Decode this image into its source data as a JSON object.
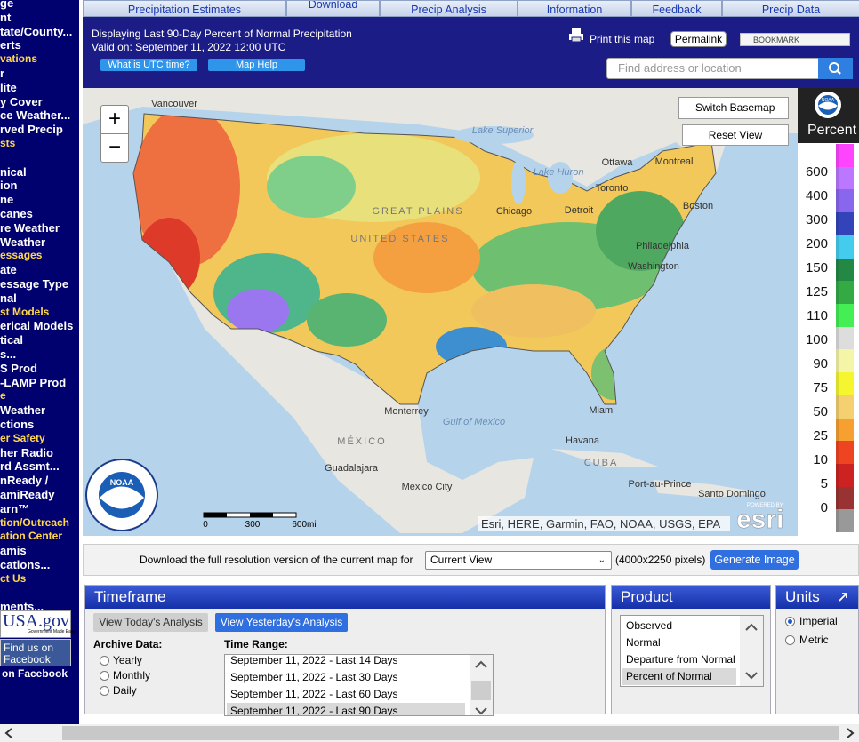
{
  "sidebar": {
    "items": [
      {
        "text": "ge"
      },
      {
        "text": "nt"
      },
      {
        "text": "tate/County..."
      },
      {
        "text": "erts"
      },
      {
        "text": "vations",
        "accent": true
      },
      {
        "text": "r"
      },
      {
        "text": "lite"
      },
      {
        "text": "y Cover"
      },
      {
        "text": "ce Weather..."
      },
      {
        "text": "rved Precip"
      },
      {
        "text": "sts",
        "accent": true
      },
      {
        "text": "nical"
      },
      {
        "text": "ion"
      },
      {
        "text": "ne"
      },
      {
        "text": "canes"
      },
      {
        "text": "re Weather"
      },
      {
        "text": "Weather"
      },
      {
        "text": "essages",
        "accent": true
      },
      {
        "text": "ate"
      },
      {
        "text": "essage Type"
      },
      {
        "text": "nal"
      },
      {
        "text": "st Models",
        "accent": true
      },
      {
        "text": "erical Models"
      },
      {
        "text": "tical"
      },
      {
        "text": "s..."
      },
      {
        "text": "S Prod"
      },
      {
        "text": "-LAMP Prod"
      },
      {
        "text": "e",
        "accent": true
      },
      {
        "text": "Weather"
      },
      {
        "text": "ctions"
      },
      {
        "text": "er Safety",
        "accent": true
      },
      {
        "text": "her Radio"
      },
      {
        "text": "rd Assmt..."
      },
      {
        "text": "nReady /"
      },
      {
        "text": "amiReady"
      },
      {
        "text": "arn™"
      },
      {
        "text": "tion/Outreach",
        "accent": true
      },
      {
        "text": "ation Center",
        "accent": true
      },
      {
        "text": "amis"
      },
      {
        "text": "cations..."
      },
      {
        "text": "ct Us",
        "accent": true
      },
      {
        "text": "ments..."
      }
    ],
    "usa_gov": "USA.gov",
    "usa_gov_tagline": "Government Made Easy",
    "facebook_badge": "Find us on Facebook",
    "facebook_link": "on Facebook"
  },
  "tabs": [
    "Precipitation Estimates",
    "Download",
    "Precip Analysis",
    "Information",
    "Feedback",
    "Precip Data"
  ],
  "header": {
    "line1": "Displaying Last 90-Day Percent of Normal Precipitation",
    "line2": "Valid on: September 11, 2022 12:00 UTC",
    "buttons": [
      "What is UTC time?",
      "Map Help"
    ],
    "print": "Print this map",
    "permalink": "Permalink",
    "bookmark": "BOOKMARK",
    "search_placeholder": "Find address or location"
  },
  "map": {
    "zoom_in": "+",
    "zoom_out": "−",
    "switch_basemap": "Switch Basemap",
    "reset_view": "Reset View",
    "labels": [
      "Vancouver",
      "Lake Superior",
      "Lake Huron",
      "Ottawa",
      "Montreal",
      "Toronto",
      "Detroit",
      "Chicago",
      "Boston",
      "Philadelphia",
      "Washington",
      "GREAT PLAINS",
      "UNITED STATES",
      "Monterrey",
      "Gulf of Mexico",
      "Miami",
      "Havana",
      "CUBA",
      "MÉXICO",
      "Guadalajara",
      "Mexico City",
      "Port-au-Prince",
      "Santo Domingo"
    ],
    "scale": [
      "0",
      "300",
      "600mi"
    ],
    "attribution": "Esri, HERE, Garmin, FAO, NOAA, USGS, EPA",
    "powered_by": "POWERED BY",
    "esri": "esri",
    "noaa": "NOAA",
    "help": "?"
  },
  "legend": {
    "noaa": "NOAA",
    "title": "Percent",
    "values": [
      600,
      400,
      300,
      200,
      150,
      125,
      110,
      100,
      90,
      75,
      50,
      25,
      10,
      5,
      0
    ],
    "colors": [
      "#ff44ff",
      "#bb77ff",
      "#8866ee",
      "#3344bb",
      "#44ccee",
      "#228844",
      "#33aa44",
      "#44ee55",
      "#dddddd",
      "#f5f5a8",
      "#f5f530",
      "#f5d070",
      "#f5a030",
      "#ee4422",
      "#cc2222",
      "#993333",
      "#999999"
    ]
  },
  "download": {
    "text": "Download the full resolution version of the current map for",
    "selection": "Current View",
    "size": "(4000x2250 pixels)",
    "button": "Generate Image"
  },
  "timeframe": {
    "title": "Timeframe",
    "today": "View Today's Analysis",
    "yesterday": "View Yesterday's Analysis",
    "archive_label": "Archive Data:",
    "archive_options": [
      "Yearly",
      "Monthly",
      "Daily"
    ],
    "range_label": "Time Range:",
    "ranges": [
      "September 11, 2022 - Last 14 Days",
      "September 11, 2022 - Last 30 Days",
      "September 11, 2022 - Last 60 Days",
      "September 11, 2022 - Last 90 Days"
    ],
    "selected_range": 3
  },
  "product": {
    "title": "Product",
    "options": [
      "Observed",
      "Normal",
      "Departure from Normal",
      "Percent of Normal"
    ],
    "selected": 3
  },
  "units": {
    "title": "Units",
    "options": [
      "Imperial",
      "Metric"
    ],
    "selected": 0
  }
}
